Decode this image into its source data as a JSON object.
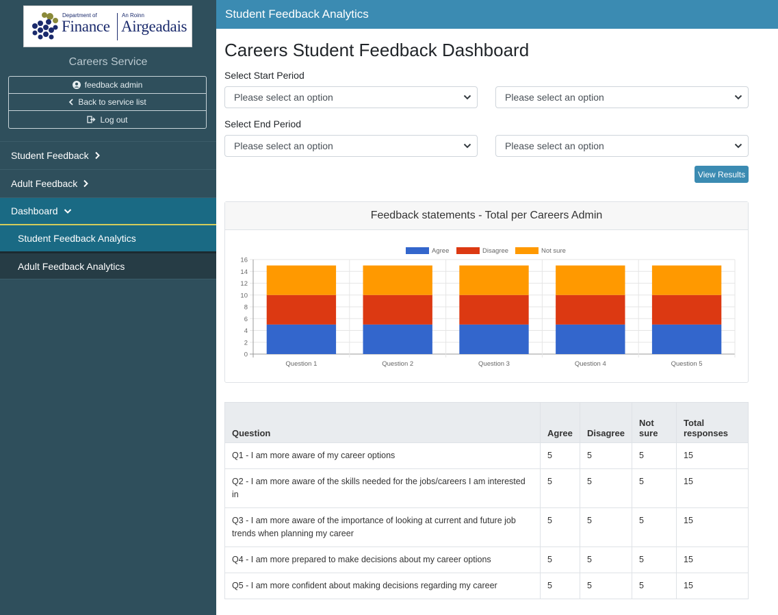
{
  "logo": {
    "dept_of": "Department of",
    "finance": "Finance",
    "an_roinn": "An Roinn",
    "airgeadais": "Airgeadais"
  },
  "sidebar": {
    "service_name": "Careers Service",
    "user_name": "feedback admin",
    "back_label": "Back to service list",
    "logout_label": "Log out",
    "nav": {
      "student_feedback": "Student Feedback",
      "adult_feedback": "Adult Feedback",
      "dashboard": "Dashboard",
      "student_analytics": "Student Feedback Analytics",
      "adult_analytics": "Adult Feedback Analytics"
    }
  },
  "header": {
    "title": "Student Feedback Analytics"
  },
  "main": {
    "page_title": "Careers Student Feedback Dashboard",
    "start_label": "Select Start Period",
    "end_label": "Select End Period",
    "start_select_1": "Please select an option",
    "start_select_2": "Please select an option",
    "end_select_1": "Please select an option",
    "end_select_2": "Please select an option",
    "view_results": "View Results",
    "card_title": "Feedback statements - Total per Careers Admin"
  },
  "colors": {
    "agree": "#3366cc",
    "disagree": "#dc3912",
    "not_sure": "#ff9900",
    "header_bar": "#3b8bb2",
    "sidebar": "#2f4f5c"
  },
  "chart_data": {
    "type": "bar",
    "stacked": true,
    "categories": [
      "Question 1",
      "Question 2",
      "Question 3",
      "Question 4",
      "Question 5"
    ],
    "series": [
      {
        "name": "Agree",
        "color": "#3366cc",
        "values": [
          5,
          5,
          5,
          5,
          5
        ]
      },
      {
        "name": "Disagree",
        "color": "#dc3912",
        "values": [
          5,
          5,
          5,
          5,
          5
        ]
      },
      {
        "name": "Not sure",
        "color": "#ff9900",
        "values": [
          5,
          5,
          5,
          5,
          5
        ]
      }
    ],
    "ylim": [
      0,
      16
    ],
    "yticks": [
      0,
      2,
      4,
      6,
      8,
      10,
      12,
      14,
      16
    ],
    "grid": true,
    "legend": "top"
  },
  "table": {
    "headers": {
      "question": "Question",
      "agree": "Agree",
      "disagree": "Disagree",
      "not_sure_1": "Not",
      "not_sure_2": "sure",
      "total_1": "Total",
      "total_2": "responses"
    },
    "rows": [
      {
        "question": "Q1 - I am more aware of my career options",
        "agree": "5",
        "disagree": "5",
        "not_sure": "5",
        "total": "15"
      },
      {
        "question": "Q2 - I am more aware of the skills needed for the jobs/careers I am interested in",
        "agree": "5",
        "disagree": "5",
        "not_sure": "5",
        "total": "15"
      },
      {
        "question": "Q3 - I am more aware of the importance of looking at current and future job trends when planning my career",
        "agree": "5",
        "disagree": "5",
        "not_sure": "5",
        "total": "15"
      },
      {
        "question": "Q4 - I am more prepared to make decisions about my career options",
        "agree": "5",
        "disagree": "5",
        "not_sure": "5",
        "total": "15"
      },
      {
        "question": "Q5 - I am more confident about making decisions regarding my career",
        "agree": "5",
        "disagree": "5",
        "not_sure": "5",
        "total": "15"
      }
    ]
  }
}
